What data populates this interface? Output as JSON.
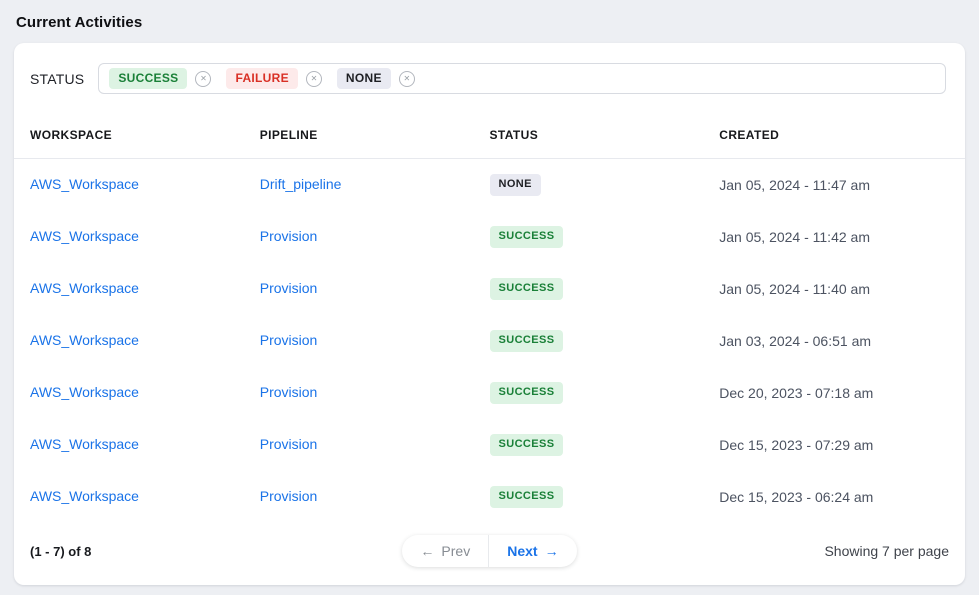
{
  "page": {
    "title": "Current Activities"
  },
  "icons": {
    "remove": "✕"
  },
  "filter": {
    "label": "STATUS",
    "tags": [
      {
        "label": "SUCCESS",
        "type": "success"
      },
      {
        "label": "FAILURE",
        "type": "failure"
      },
      {
        "label": "NONE",
        "type": "none"
      }
    ]
  },
  "table": {
    "columns": [
      "WORKSPACE",
      "PIPELINE",
      "STATUS",
      "CREATED"
    ],
    "rows": [
      {
        "workspace": "AWS_Workspace",
        "pipeline": "Drift_pipeline",
        "status": "NONE",
        "status_type": "none",
        "created": "Jan 05, 2024 - 11:47 am"
      },
      {
        "workspace": "AWS_Workspace",
        "pipeline": "Provision",
        "status": "SUCCESS",
        "status_type": "success",
        "created": "Jan 05, 2024 - 11:42 am"
      },
      {
        "workspace": "AWS_Workspace",
        "pipeline": "Provision",
        "status": "SUCCESS",
        "status_type": "success",
        "created": "Jan 05, 2024 - 11:40 am"
      },
      {
        "workspace": "AWS_Workspace",
        "pipeline": "Provision",
        "status": "SUCCESS",
        "status_type": "success",
        "created": "Jan 03, 2024 - 06:51 am"
      },
      {
        "workspace": "AWS_Workspace",
        "pipeline": "Provision",
        "status": "SUCCESS",
        "status_type": "success",
        "created": "Dec 20, 2023 - 07:18 am"
      },
      {
        "workspace": "AWS_Workspace",
        "pipeline": "Provision",
        "status": "SUCCESS",
        "status_type": "success",
        "created": "Dec 15, 2023 - 07:29 am"
      },
      {
        "workspace": "AWS_Workspace",
        "pipeline": "Provision",
        "status": "SUCCESS",
        "status_type": "success",
        "created": "Dec 15, 2023 - 06:24 am"
      }
    ]
  },
  "pagination": {
    "range_text": "(1 - 7) of 8",
    "prev_icon": "←",
    "prev_label": "Prev",
    "next_label": "Next",
    "next_icon": "→",
    "per_page_text": "Showing 7 per page"
  },
  "colors": {
    "link_blue": "#1a73e8",
    "success_text": "#1a8038",
    "success_bg": "#ddf3e3",
    "failure_text": "#d93025",
    "failure_bg": "#fdeaea",
    "none_text": "#1f2024",
    "none_bg": "#e9eaf2",
    "page_bg": "#edeff3",
    "card_bg": "#ffffff"
  }
}
